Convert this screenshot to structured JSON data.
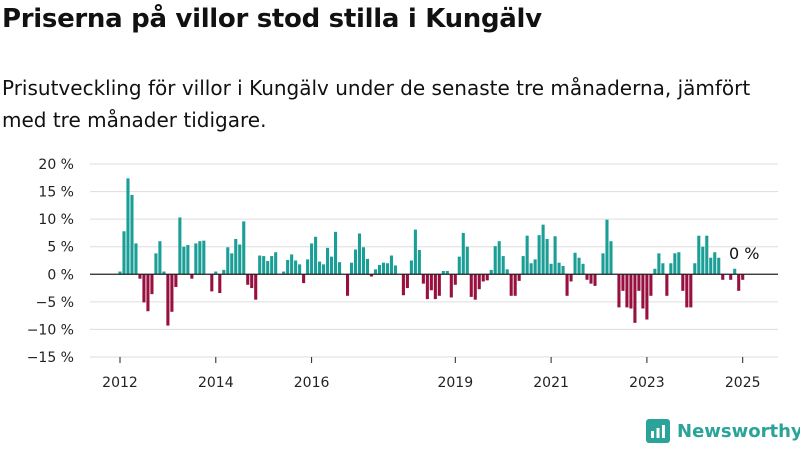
{
  "title": "Priserna på villor stod stilla i Kungälv",
  "subtitle": "Prisutveckling för villor i Kungälv under de senaste tre månaderna, jämfört med tre månader tidigare.",
  "brand": "Newsworthy",
  "colors": {
    "positive": "#1a9e96",
    "negative": "#98103f",
    "grid": "#dddddd",
    "axis": "#222222",
    "brand": "#2aa39a"
  },
  "chart_data": {
    "type": "bar",
    "title": "Priserna på villor stod stilla i Kungälv",
    "subtitle": "Prisutveckling för villor i Kungälv under de senaste tre månaderna, jämfört med tre månader tidigare.",
    "xlabel": "",
    "ylabel": "",
    "ylim": [
      -15,
      20
    ],
    "y_ticks": [
      20,
      15,
      10,
      5,
      0,
      -5,
      -10,
      -15
    ],
    "y_tick_labels": [
      "20 %",
      "15 %",
      "10 %",
      "5 %",
      "0 %",
      "−5 %",
      "−10 %",
      "−15 %"
    ],
    "x_ticks": [
      2012,
      2014,
      2016,
      2019,
      2021,
      2023,
      2025
    ],
    "x_tick_labels": [
      "2012",
      "2014",
      "2016",
      "2019",
      "2021",
      "2023",
      "2025"
    ],
    "start": "2012-01",
    "frequency": "monthly",
    "grid": true,
    "legend": "none",
    "annotation": "0 %",
    "values": [
      0.5,
      7.8,
      17.4,
      14.4,
      5.6,
      -0.8,
      -5.1,
      -6.7,
      -3.6,
      3.8,
      6.0,
      0.5,
      -9.3,
      -6.8,
      -2.3,
      10.3,
      5.0,
      5.3,
      -0.8,
      5.6,
      6.0,
      6.1,
      0.0,
      -3.1,
      0.5,
      -3.4,
      0.8,
      4.9,
      3.8,
      6.4,
      5.4,
      9.6,
      -1.9,
      -2.5,
      -4.6,
      3.4,
      3.3,
      2.4,
      3.3,
      4.0,
      0.0,
      0.5,
      2.6,
      3.6,
      2.5,
      1.8,
      -1.6,
      2.7,
      5.6,
      6.8,
      2.3,
      1.8,
      4.8,
      3.2,
      7.7,
      2.2,
      0.0,
      -3.9,
      2.1,
      4.5,
      7.4,
      4.9,
      2.8,
      -0.4,
      0.9,
      1.7,
      2.1,
      2.0,
      3.4,
      1.6,
      0.0,
      -3.8,
      -2.5,
      2.5,
      8.1,
      4.4,
      -1.7,
      -4.5,
      -2.9,
      -4.5,
      -3.9,
      0.6,
      0.6,
      -4.2,
      -1.9,
      3.2,
      7.5,
      5.0,
      -4.1,
      -4.6,
      -2.7,
      -1.3,
      -1.1,
      0.8,
      5.1,
      6.0,
      3.3,
      0.9,
      -3.9,
      -3.9,
      -1.2,
      3.3,
      7.0,
      2.0,
      2.7,
      7.1,
      9.0,
      6.4,
      1.9,
      6.9,
      2.1,
      1.5,
      -3.9,
      -1.3,
      3.9,
      3.0,
      1.9,
      -1.0,
      -1.7,
      -2.1,
      0.0,
      3.8,
      9.9,
      6.0,
      0.0,
      -6.0,
      -3.0,
      -6.0,
      -6.2,
      -8.8,
      -3.0,
      -6.2,
      -8.2,
      -3.9,
      1.0,
      3.8,
      2.0,
      -3.9,
      2.0,
      3.8,
      4.0,
      -3.0,
      -6.0,
      -6.0,
      2.0,
      7.0,
      5.0,
      7.0,
      3.0,
      4.0,
      3.0,
      -1.0,
      0.0,
      -1.0,
      1.0,
      -3.0,
      -1.0
    ]
  }
}
